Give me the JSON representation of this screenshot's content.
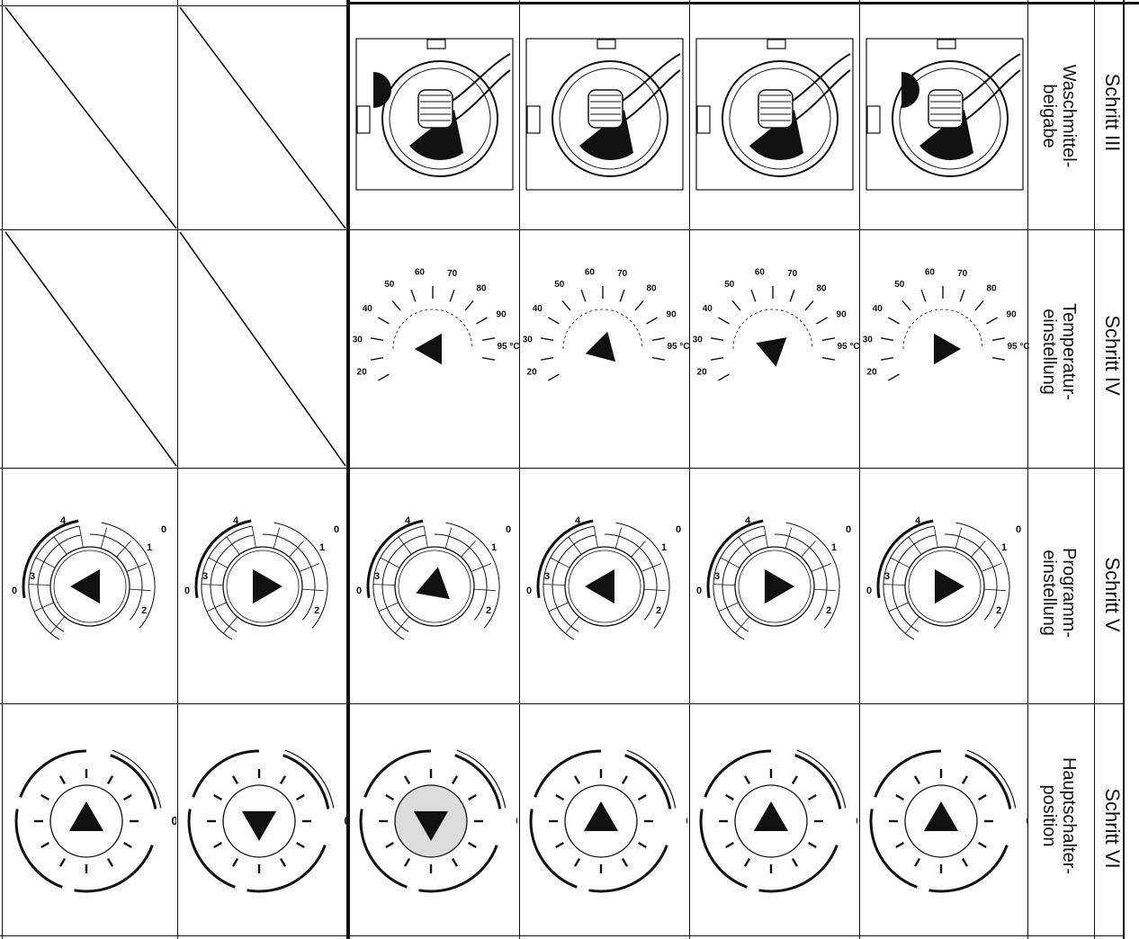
{
  "table": {
    "rows": [
      {
        "step": "Schritt III",
        "label": "Waschmittel-\nbeigabe",
        "label_line1": "Waschmittel-",
        "label_line2": "beigabe",
        "icon": "detergent-drawer-image"
      },
      {
        "step": "Schritt IV",
        "label_line1": "Temperatur-",
        "label_line2": "einstellung",
        "icon": "temperature-dial"
      },
      {
        "step": "Schritt V",
        "label_line1": "Programm-",
        "label_line2": "einstellung",
        "icon": "program-dial"
      },
      {
        "step": "Schritt VI",
        "label_line1": "Hauptschalter-",
        "label_line2": "position",
        "icon": "main-switch-dial"
      }
    ],
    "temperature_scale": [
      "20",
      "30",
      "40",
      "50",
      "60",
      "70",
      "80",
      "90",
      "95 °C"
    ],
    "program_marks": [
      "0",
      "1",
      "2",
      "3",
      "4",
      "0"
    ],
    "main_switch_zero": "0",
    "columns": 6,
    "empty_cells_note": ""
  },
  "colors": {
    "ink": "#111111",
    "paper": "#ffffff",
    "shade": "#dcdcdc"
  }
}
